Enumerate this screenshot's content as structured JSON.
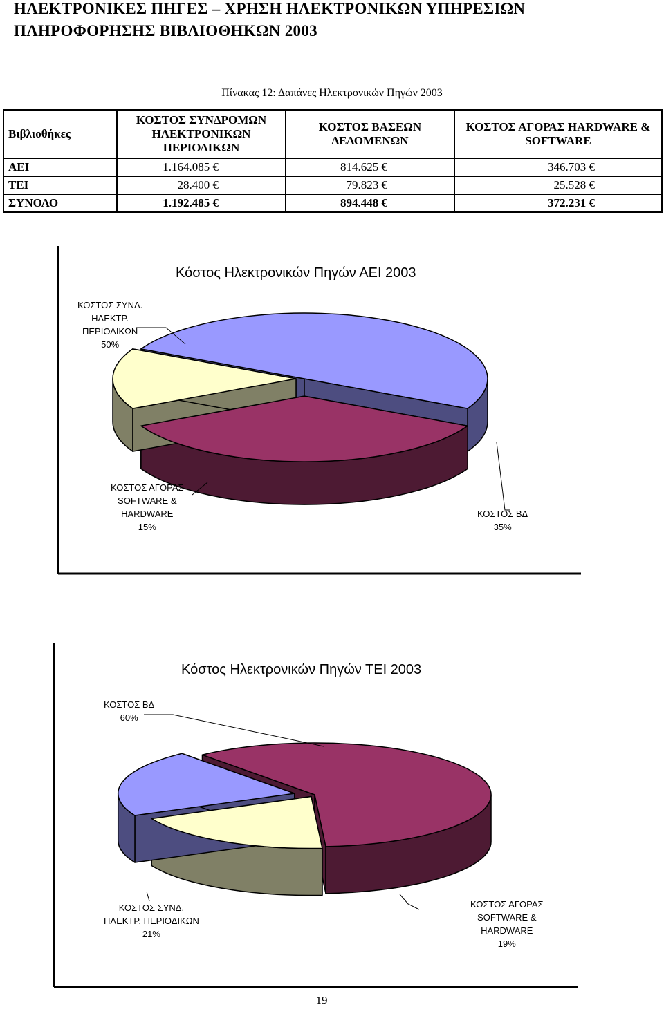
{
  "header": {
    "title_line1": "ΗΛΕΚΤΡΟΝΙΚΕΣ ΠΗΓΕΣ – ΧΡΗΣΗ ΗΛΕΚΤΡΟΝΙΚΩΝ ΥΠΗΡΕΣΙΩΝ",
    "title_line2": "ΠΛΗΡΟΦΟΡΗΣΗΣ ΒΙΒΛΙΟΘΗΚΩΝ 2003"
  },
  "table": {
    "caption": "Πίνακας 12: Δαπάνες Ηλεκτρονικών Πηγών 2003",
    "headers": [
      "Βιβλιοθήκες",
      "ΚΟΣΤΟΣ ΣΥΝΔΡΟΜΩΝ ΗΛΕΚΤΡΟΝΙΚΩΝ ΠΕΡΙΟΔΙΚΩΝ",
      "ΚΟΣΤΟΣ ΒΑΣΕΩΝ ΔΕΔΟΜΕΝΩΝ",
      "ΚΟΣΤΟΣ ΑΓΟΡΑΣ HARDWARE & SOFTWARE"
    ],
    "rows": [
      {
        "label": "ΑΕΙ",
        "c1": "1.164.085 €",
        "c2": "814.625 €",
        "c3": "346.703 €"
      },
      {
        "label": "ΤΕΙ",
        "c1": "28.400 €",
        "c2": "79.823 €",
        "c3": "25.528 €"
      },
      {
        "label": "ΣΥΝΟΛΟ",
        "c1": "1.192.485 €",
        "c2": "894.448 €",
        "c3": "372.231 €"
      }
    ]
  },
  "chart_data": [
    {
      "type": "pie",
      "title": "Κόστος Ηλεκτρονικών Πηγών ΑΕΙ 2003",
      "labels": [
        "ΚΟΣΤΟΣ ΣΥΝΔ. ΗΛΕΚΤΡ. ΠΕΡΙΟΔΙΚΩΝ",
        "ΚΟΣΤΟΣ ΒΔ",
        "ΚΟΣΤΟΣ ΑΓΟΡΑΣ SOFTWARE & HARDWARE"
      ],
      "label_lines": [
        [
          "ΚΟΣΤΟΣ ΣΥΝΔ.",
          "ΗΛΕΚΤΡ.",
          "ΠΕΡΙΟΔΙΚΩΝ",
          "50%"
        ],
        [
          "ΚΟΣΤΟΣ ΒΔ",
          "35%"
        ],
        [
          "ΚΟΣΤΟΣ ΑΓΟΡΑΣ",
          "SOFTWARE &",
          "HARDWARE",
          "15%"
        ]
      ],
      "values": [
        50,
        35,
        15
      ],
      "colors": [
        "#9999ff",
        "#993366",
        "#ffffcc"
      ],
      "side_colors": [
        "#4d4d80",
        "#4d1a33",
        "#808066"
      ]
    },
    {
      "type": "pie",
      "title": "Κόστος Ηλεκτρονικών Πηγών ΤΕΙ 2003",
      "labels": [
        "ΚΟΣΤΟΣ ΒΔ",
        "ΚΟΣΤΟΣ ΑΓΟΡΑΣ SOFTWARE & HARDWARE",
        "ΚΟΣΤΟΣ ΣΥΝΔ. ΗΛΕΚΤΡ. ΠΕΡΙΟΔΙΚΩΝ"
      ],
      "label_lines": [
        [
          "ΚΟΣΤΟΣ ΒΔ",
          "60%"
        ],
        [
          "ΚΟΣΤΟΣ ΑΓΟΡΑΣ",
          "SOFTWARE &",
          "HARDWARE",
          "19%"
        ],
        [
          "ΚΟΣΤΟΣ ΣΥΝΔ.",
          "ΗΛΕΚΤΡ. ΠΕΡΙΟΔΙΚΩΝ",
          "21%"
        ]
      ],
      "values": [
        60,
        19,
        21
      ],
      "colors": [
        "#993366",
        "#ffffcc",
        "#9999ff"
      ],
      "side_colors": [
        "#4d1a33",
        "#808066",
        "#4d4d80"
      ]
    }
  ],
  "footer": {
    "page_number": "19"
  }
}
